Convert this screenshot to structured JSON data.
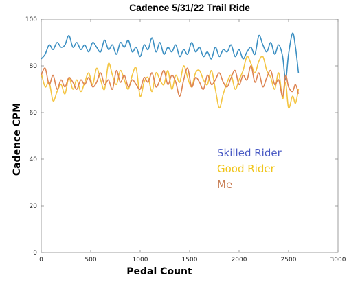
{
  "chart_data": {
    "type": "line",
    "title": "Cadence 5/31/22 Trail Ride",
    "xlabel": "Pedal Count",
    "ylabel": "Cadence CPM",
    "xlim": [
      0,
      3000
    ],
    "ylim": [
      0,
      100
    ],
    "x_ticks": [
      0,
      500,
      1000,
      1500,
      2000,
      2500,
      3000
    ],
    "y_ticks": [
      0,
      20,
      40,
      60,
      80,
      100
    ],
    "grid": false,
    "legend_position": "inside-right",
    "series": [
      {
        "name": "Skilled Rider",
        "color": "#3b8fc2",
        "legend_color": "#4a5bc4",
        "x": [
          0,
          40,
          80,
          120,
          160,
          200,
          240,
          280,
          320,
          360,
          400,
          440,
          480,
          520,
          560,
          600,
          640,
          680,
          720,
          760,
          800,
          840,
          880,
          920,
          960,
          1000,
          1040,
          1080,
          1120,
          1160,
          1200,
          1240,
          1280,
          1320,
          1360,
          1400,
          1440,
          1480,
          1520,
          1560,
          1600,
          1640,
          1680,
          1720,
          1760,
          1800,
          1840,
          1880,
          1920,
          1960,
          2000,
          2040,
          2080,
          2120,
          2160,
          2200,
          2240,
          2280,
          2320,
          2360,
          2400,
          2440,
          2470,
          2500,
          2540,
          2570,
          2600
        ],
        "y": [
          83,
          85,
          89,
          87,
          90,
          88,
          89,
          93,
          88,
          90,
          87,
          89,
          86,
          90,
          88,
          86,
          91,
          87,
          89,
          85,
          90,
          88,
          91,
          86,
          88,
          84,
          89,
          87,
          92,
          86,
          90,
          85,
          88,
          86,
          89,
          84,
          87,
          85,
          90,
          86,
          88,
          84,
          86,
          83,
          88,
          84,
          87,
          86,
          89,
          84,
          87,
          83,
          86,
          88,
          85,
          93,
          89,
          86,
          90,
          85,
          89,
          84,
          74,
          85,
          94,
          88,
          77
        ]
      },
      {
        "name": "Good Rider",
        "color": "#f4c542",
        "legend_color": "#f0c419",
        "x": [
          0,
          40,
          80,
          120,
          160,
          200,
          240,
          280,
          320,
          360,
          400,
          440,
          480,
          520,
          560,
          600,
          640,
          680,
          720,
          760,
          800,
          840,
          880,
          920,
          960,
          1000,
          1040,
          1080,
          1120,
          1160,
          1200,
          1240,
          1280,
          1320,
          1360,
          1400,
          1440,
          1480,
          1520,
          1560,
          1600,
          1640,
          1680,
          1720,
          1760,
          1800,
          1840,
          1880,
          1920,
          1960,
          2000,
          2040,
          2080,
          2120,
          2160,
          2200,
          2240,
          2280,
          2320,
          2360,
          2400,
          2440,
          2470,
          2500,
          2540,
          2570,
          2600
        ],
        "y": [
          77,
          71,
          73,
          65,
          69,
          72,
          68,
          75,
          70,
          74,
          69,
          73,
          77,
          72,
          79,
          74,
          70,
          81,
          76,
          72,
          78,
          74,
          70,
          76,
          79,
          67,
          73,
          75,
          69,
          77,
          74,
          72,
          78,
          70,
          76,
          73,
          80,
          75,
          71,
          77,
          78,
          74,
          72,
          78,
          70,
          62,
          68,
          73,
          76,
          70,
          74,
          78,
          84,
          81,
          77,
          82,
          84,
          78,
          75,
          70,
          77,
          66,
          73,
          62,
          67,
          64,
          70
        ]
      },
      {
        "name": "Me",
        "color": "#dd8452",
        "legend_color": "#c87e55",
        "x": [
          0,
          40,
          80,
          120,
          160,
          200,
          240,
          280,
          320,
          360,
          400,
          440,
          480,
          520,
          560,
          600,
          640,
          680,
          720,
          760,
          800,
          840,
          880,
          920,
          960,
          1000,
          1040,
          1080,
          1120,
          1160,
          1200,
          1240,
          1280,
          1320,
          1360,
          1400,
          1440,
          1480,
          1520,
          1560,
          1600,
          1640,
          1680,
          1720,
          1760,
          1800,
          1840,
          1880,
          1920,
          1960,
          2000,
          2040,
          2080,
          2120,
          2160,
          2200,
          2240,
          2280,
          2320,
          2360,
          2400,
          2440,
          2470,
          2500,
          2540,
          2570,
          2600
        ],
        "y": [
          76,
          79,
          72,
          76,
          70,
          74,
          71,
          75,
          73,
          70,
          74,
          72,
          75,
          71,
          73,
          77,
          72,
          74,
          70,
          78,
          73,
          76,
          71,
          74,
          72,
          70,
          75,
          73,
          77,
          71,
          74,
          78,
          72,
          76,
          73,
          67,
          74,
          79,
          71,
          75,
          73,
          70,
          76,
          72,
          74,
          77,
          73,
          71,
          75,
          78,
          72,
          76,
          74,
          80,
          73,
          77,
          71,
          75,
          78,
          72,
          74,
          67,
          76,
          71,
          69,
          72,
          68
        ]
      }
    ]
  }
}
